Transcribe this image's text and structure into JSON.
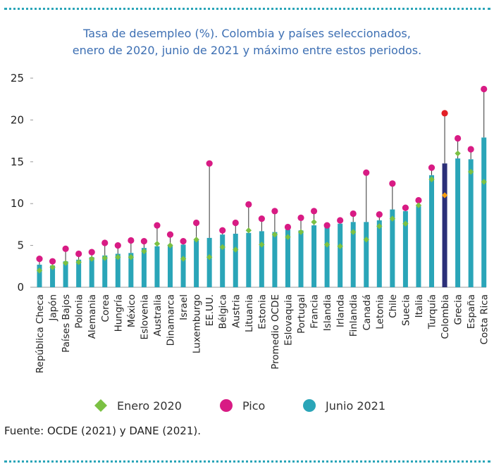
{
  "title_line1": "Tasa de desempleo (%). Colombia y países seleccionados,",
  "title_line2": "enero de 2020, junio de 2021 y máximo entre estos periodos.",
  "source": "Fuente: OCDE (2021) y DANE (2021).",
  "colors": {
    "bar": "#2aa5b8",
    "bar_highlight": "#2b2f78",
    "peak": "#d81b84",
    "peak_highlight": "#e31f26",
    "jan": "#7bc143",
    "jan_highlight": "#f39c12",
    "whisker": "#333333",
    "dotted_rule": "#2aa5b8",
    "title": "#3d6fb3"
  },
  "chart_data": {
    "type": "bar",
    "title": "Tasa de desempleo (%). Colombia y países seleccionados, enero de 2020, junio de 2021 y máximo entre estos periodos.",
    "ylim": [
      0,
      25
    ],
    "yticks": [
      "0",
      "5",
      "10",
      "15",
      "20",
      "25"
    ],
    "grid": false,
    "legend_position": "bottom",
    "highlight_category": "Colombia",
    "categories": [
      "República Checa",
      "Japón",
      "Países Bajos",
      "Polonia",
      "Alemania",
      "Corea",
      "Hungría",
      "México",
      "Eslovenia",
      "Australia",
      "Dinamarca",
      "Israel",
      "Luxemburgo",
      "EE.UU.",
      "Bélgica",
      "Austria",
      "Lituania",
      "Estonia",
      "Promedio OCDE",
      "Eslovaquia",
      "Portugal",
      "Francia",
      "Islandia",
      "Irlanda",
      "Finlandia",
      "Canadá",
      "Letonia",
      "Chile",
      "Suecia",
      "Italia",
      "Turquía",
      "Colombia",
      "Grecia",
      "España",
      "Costa Rica"
    ],
    "series": [
      {
        "name": "Enero 2020",
        "marker": "diamond",
        "values": [
          2.0,
          2.4,
          2.9,
          3.0,
          3.4,
          3.5,
          3.6,
          3.6,
          4.3,
          5.2,
          5.0,
          3.4,
          5.7,
          3.6,
          4.8,
          4.5,
          6.8,
          5.1,
          6.3,
          6.0,
          6.6,
          7.8,
          5.1,
          4.9,
          6.6,
          5.7,
          7.3,
          8.2,
          7.6,
          9.8,
          12.9,
          11.0,
          16.0,
          13.8,
          12.6
        ]
      },
      {
        "name": "Pico",
        "marker": "circle",
        "values": [
          3.4,
          3.1,
          4.6,
          4.0,
          4.2,
          5.3,
          5.0,
          5.6,
          5.5,
          7.4,
          6.3,
          5.5,
          7.7,
          14.8,
          6.8,
          7.7,
          9.9,
          8.2,
          9.1,
          7.2,
          8.3,
          9.1,
          7.4,
          8.0,
          8.8,
          13.7,
          8.7,
          12.4,
          9.5,
          10.4,
          14.3,
          20.8,
          17.8,
          16.5,
          23.7
        ]
      },
      {
        "name": "Junio 2021",
        "marker": "bar",
        "values": [
          2.7,
          2.6,
          3.1,
          3.3,
          3.6,
          3.8,
          4.0,
          4.1,
          4.7,
          4.9,
          5.1,
          5.1,
          5.6,
          5.9,
          6.3,
          6.4,
          6.5,
          6.7,
          6.6,
          6.9,
          6.8,
          7.4,
          7.3,
          7.6,
          7.8,
          7.8,
          8.0,
          9.3,
          9.1,
          9.7,
          13.4,
          14.8,
          15.4,
          15.3,
          17.9
        ]
      }
    ]
  },
  "legend": {
    "jan_label": "Enero 2020",
    "peak_label": "Pico",
    "jun_label": "Junio 2021"
  }
}
